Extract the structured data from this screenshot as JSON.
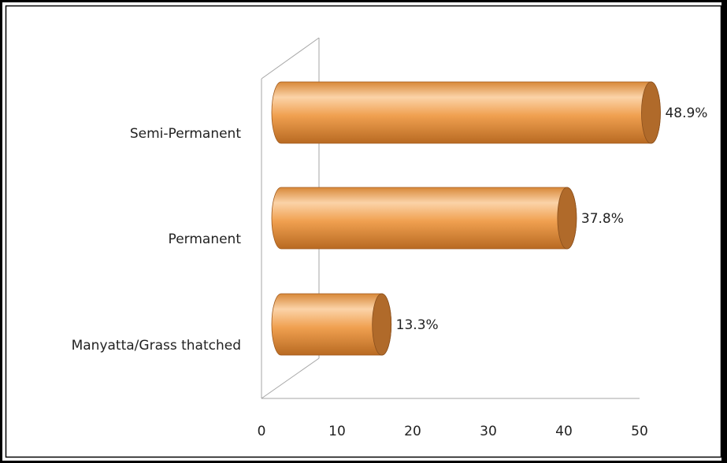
{
  "chart_data": {
    "type": "bar",
    "orientation": "horizontal",
    "style": "3d-cylinder",
    "categories": [
      "Manyatta/Grass thatched",
      "Permanent",
      "Semi-Permanent"
    ],
    "values": [
      13.3,
      37.8,
      48.9
    ],
    "data_labels": [
      "13.3%",
      "37.8%",
      "48.9%"
    ],
    "x_ticks": [
      "0",
      "10",
      "20",
      "30",
      "40",
      "50"
    ],
    "xlim": [
      0,
      50
    ],
    "title": "",
    "xlabel": "",
    "ylabel": "",
    "grid": false,
    "legend": "none",
    "colors": {
      "bar_body": "#f0a050",
      "bar_highlight": "#fbd3a8",
      "bar_shadow": "#b86a22",
      "bar_cap": "#b06a2a",
      "axis": "#a6a6a6",
      "frame": "#000000"
    }
  }
}
